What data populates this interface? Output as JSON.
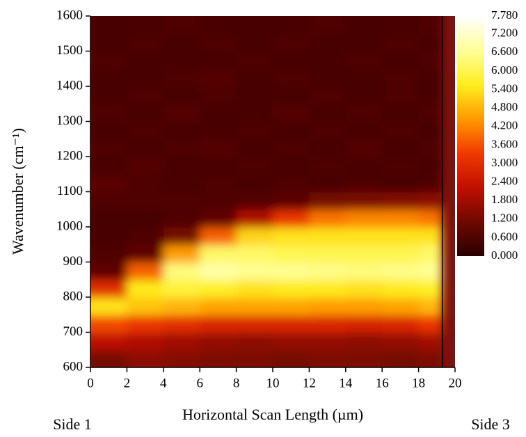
{
  "chart_data": {
    "type": "heatmap",
    "xlabel": "Horizontal Scan Length (µm)",
    "ylabel": "Wavenumber (cm⁻¹)",
    "annotations": [
      "Side 1",
      "Side 3"
    ],
    "xlim": [
      0,
      20
    ],
    "xticks": [
      0,
      2,
      4,
      6,
      8,
      10,
      12,
      14,
      16,
      18,
      20
    ],
    "ylim": [
      600,
      1600
    ],
    "yticks": [
      600,
      700,
      800,
      900,
      1000,
      1100,
      1200,
      1300,
      1400,
      1500,
      1600
    ],
    "xbins": [
      0,
      2,
      4,
      6,
      8,
      10,
      12,
      14,
      16,
      18,
      19.3
    ],
    "ybins": [
      600,
      650,
      700,
      750,
      800,
      850,
      900,
      950,
      1000,
      1050,
      1100,
      1150,
      1200,
      1250,
      1300,
      1350,
      1400,
      1450,
      1500,
      1550,
      1600
    ],
    "z": [
      [
        1.2,
        1.5,
        1.4,
        1.3,
        1.3,
        1.2,
        1.3,
        1.3,
        1.2,
        1.3
      ],
      [
        2.2,
        2.0,
        1.8,
        1.6,
        1.5,
        1.6,
        1.6,
        1.5,
        1.6,
        1.8
      ],
      [
        3.5,
        3.2,
        3.0,
        2.8,
        2.8,
        2.8,
        2.8,
        2.7,
        2.8,
        3.2
      ],
      [
        5.4,
        5.0,
        4.8,
        4.6,
        4.6,
        4.6,
        4.5,
        4.5,
        4.6,
        4.8
      ],
      [
        3.0,
        5.5,
        5.8,
        5.6,
        5.4,
        5.5,
        5.5,
        5.4,
        5.5,
        5.6
      ],
      [
        0.9,
        3.8,
        6.4,
        6.8,
        6.6,
        6.6,
        6.5,
        6.4,
        6.5,
        6.6
      ],
      [
        0.6,
        0.9,
        4.5,
        6.2,
        6.2,
        6.0,
        6.0,
        6.0,
        6.0,
        6.2
      ],
      [
        0.5,
        0.6,
        1.2,
        3.8,
        5.2,
        5.4,
        5.4,
        5.4,
        5.4,
        5.4
      ],
      [
        0.5,
        0.5,
        0.6,
        0.9,
        2.0,
        3.2,
        4.0,
        4.2,
        4.2,
        4.0
      ],
      [
        0.6,
        0.6,
        0.6,
        0.6,
        0.7,
        0.8,
        1.2,
        1.3,
        1.4,
        1.5
      ],
      [
        0.8,
        0.6,
        0.5,
        0.6,
        0.5,
        0.6,
        0.5,
        0.6,
        0.5,
        0.6
      ],
      [
        0.5,
        0.7,
        0.5,
        0.5,
        0.6,
        0.5,
        0.6,
        0.5,
        0.6,
        0.5
      ],
      [
        0.6,
        0.5,
        0.6,
        0.7,
        0.5,
        0.6,
        0.5,
        0.7,
        0.5,
        0.6
      ],
      [
        0.5,
        0.6,
        0.5,
        0.5,
        0.6,
        0.5,
        0.6,
        0.5,
        0.6,
        0.5
      ],
      [
        0.6,
        0.5,
        0.7,
        0.5,
        0.5,
        0.7,
        0.5,
        0.6,
        0.5,
        0.6
      ],
      [
        0.5,
        0.6,
        0.5,
        0.6,
        0.5,
        0.5,
        0.6,
        0.5,
        0.6,
        0.5
      ],
      [
        0.5,
        0.5,
        0.6,
        0.7,
        0.5,
        0.6,
        0.5,
        0.5,
        0.6,
        0.5
      ],
      [
        0.6,
        0.5,
        0.5,
        0.5,
        0.6,
        0.5,
        0.5,
        0.6,
        0.5,
        0.6
      ],
      [
        0.5,
        0.6,
        0.5,
        0.6,
        0.5,
        0.6,
        0.5,
        0.5,
        0.6,
        0.5
      ],
      [
        0.5,
        0.5,
        0.6,
        0.5,
        0.5,
        0.5,
        0.6,
        0.5,
        0.5,
        0.6
      ]
    ],
    "zlim": [
      0,
      7.78
    ],
    "zticks": [
      {
        "value": 0,
        "label": "0.000"
      },
      {
        "value": 0.6,
        "label": "0.600"
      },
      {
        "value": 1.2,
        "label": "1.200"
      },
      {
        "value": 1.8,
        "label": "1.800"
      },
      {
        "value": 2.4,
        "label": "2.400"
      },
      {
        "value": 3.0,
        "label": "3.000"
      },
      {
        "value": 3.6,
        "label": "3.600"
      },
      {
        "value": 4.2,
        "label": "4.200"
      },
      {
        "value": 4.8,
        "label": "4.800"
      },
      {
        "value": 5.4,
        "label": "5.400"
      },
      {
        "value": 6.0,
        "label": "6.000"
      },
      {
        "value": 6.6,
        "label": "6.600"
      },
      {
        "value": 7.2,
        "label": "7.200"
      },
      {
        "value": 7.78,
        "label": "7.780"
      }
    ],
    "colormap": [
      "#2a0000",
      "#6e0800",
      "#c01000",
      "#f03a00",
      "#ff9a00",
      "#ffee20",
      "#ffff9a",
      "#ffffff"
    ],
    "background": "#7a1410"
  }
}
